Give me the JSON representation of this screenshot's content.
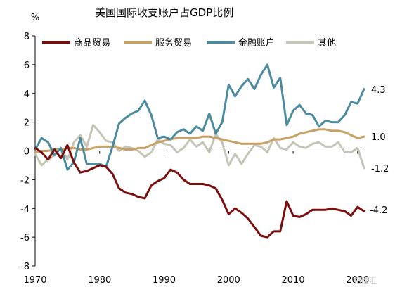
{
  "chart_data": {
    "type": "line",
    "title": "美国国际收支账户占GDP比例",
    "ylabel": "%",
    "xlabel": "",
    "ylim": [
      -8,
      8
    ],
    "yticks": [
      8,
      6,
      4,
      2,
      0,
      -2,
      -4,
      -6,
      -8
    ],
    "xlim": [
      1970,
      2021
    ],
    "xticks": [
      1970,
      1980,
      1990,
      2000,
      2010,
      2020
    ],
    "legend_position": "top",
    "grid": false,
    "x": [
      1970,
      1971,
      1972,
      1973,
      1974,
      1975,
      1976,
      1977,
      1978,
      1979,
      1980,
      1981,
      1982,
      1983,
      1984,
      1985,
      1986,
      1987,
      1988,
      1989,
      1990,
      1991,
      1992,
      1993,
      1994,
      1995,
      1996,
      1997,
      1998,
      1999,
      2000,
      2001,
      2002,
      2003,
      2004,
      2005,
      2006,
      2007,
      2008,
      2009,
      2010,
      2011,
      2012,
      2013,
      2014,
      2015,
      2016,
      2017,
      2018,
      2019,
      2020,
      2021
    ],
    "series": [
      {
        "name": "商品贸易",
        "color": "#7b0d0d",
        "values": [
          0.2,
          -0.1,
          -0.6,
          0.1,
          -0.5,
          0.4,
          -0.8,
          -1.5,
          -1.4,
          -1.2,
          -1.0,
          -1.1,
          -1.6,
          -2.6,
          -2.9,
          -3.0,
          -3.2,
          -3.3,
          -2.4,
          -2.1,
          -1.9,
          -1.3,
          -1.5,
          -2.0,
          -2.3,
          -2.3,
          -2.3,
          -2.4,
          -2.6,
          -3.4,
          -4.4,
          -4.0,
          -4.3,
          -4.7,
          -5.3,
          -5.9,
          -6.0,
          -5.6,
          -5.6,
          -3.5,
          -4.5,
          -4.6,
          -4.4,
          -4.1,
          -4.1,
          -4.1,
          -4.0,
          -4.1,
          -4.2,
          -4.5,
          -3.9,
          -4.2
        ]
      },
      {
        "name": "服务贸易",
        "color": "#c8a165",
        "values": [
          -0.1,
          0.0,
          0.0,
          0.1,
          0.1,
          0.2,
          0.2,
          0.1,
          0.1,
          0.2,
          0.3,
          0.3,
          0.3,
          0.2,
          0.1,
          0.1,
          0.2,
          0.2,
          0.4,
          0.6,
          0.7,
          0.8,
          0.9,
          0.9,
          0.9,
          0.9,
          1.0,
          1.0,
          0.9,
          0.8,
          0.7,
          0.6,
          0.5,
          0.5,
          0.5,
          0.5,
          0.6,
          0.8,
          0.8,
          0.9,
          1.0,
          1.2,
          1.3,
          1.4,
          1.5,
          1.5,
          1.4,
          1.4,
          1.3,
          1.1,
          0.9,
          1.0
        ]
      },
      {
        "name": "金融账户",
        "color": "#4a8ba0",
        "values": [
          0.1,
          0.9,
          0.6,
          -0.3,
          0.2,
          -1.3,
          -0.8,
          0.9,
          -0.9,
          -0.9,
          -0.9,
          -1.1,
          0.3,
          1.9,
          2.3,
          2.6,
          2.8,
          3.5,
          2.5,
          0.9,
          1.0,
          0.8,
          1.3,
          1.5,
          1.2,
          1.7,
          1.4,
          2.6,
          1.2,
          2.0,
          4.6,
          3.8,
          4.5,
          5.0,
          4.3,
          5.3,
          6.0,
          4.4,
          5.1,
          1.8,
          2.8,
          3.2,
          2.6,
          2.5,
          1.7,
          2.1,
          2.0,
          2.0,
          2.5,
          3.4,
          3.3,
          4.3
        ]
      },
      {
        "name": "其他",
        "color": "#c5c5b7",
        "values": [
          -0.2,
          -1.0,
          -0.6,
          -0.3,
          0.2,
          -0.6,
          0.6,
          1.1,
          0.3,
          1.8,
          1.3,
          0.7,
          0.6,
          0.0,
          0.3,
          0.2,
          0.0,
          -0.4,
          -0.1,
          0.8,
          0.5,
          0.4,
          -0.1,
          0.2,
          0.8,
          0.3,
          0.6,
          -0.1,
          1.2,
          0.6,
          -1.0,
          -0.2,
          -0.9,
          -0.2,
          0.4,
          0.3,
          -0.1,
          0.9,
          0.2,
          0.1,
          0.6,
          0.3,
          0.2,
          0.5,
          0.6,
          0.3,
          0.3,
          0.6,
          -0.1,
          -0.1,
          0.2,
          -1.2
        ]
      }
    ],
    "end_labels": [
      "4.3",
      "1.0",
      "-1.2",
      "-4.2"
    ]
  },
  "legend": {
    "item0": "商品贸易",
    "item1": "服务贸易",
    "item2": "金融账户",
    "item3": "其他"
  },
  "watermark": "格隆汇"
}
